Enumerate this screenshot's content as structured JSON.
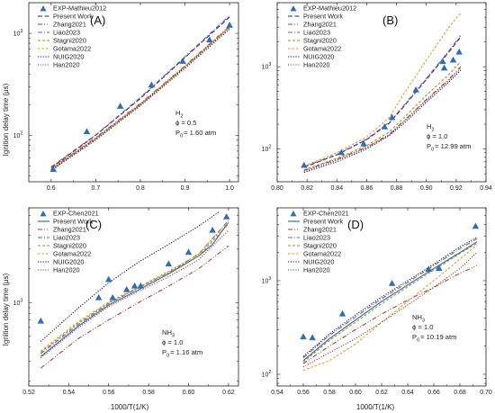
{
  "figure": {
    "ylabel": "Ignition delay time (μs)",
    "xlabel": "1000/T(1/K)"
  },
  "style": {
    "exp": "#2f6db5",
    "Present Work": "#1f2a6b",
    "Zhang2021": "#b0392b",
    "Liao2023": "#7a55b8",
    "Stagni2020": "#8a9a2a",
    "Gotama2022": "#e8931a",
    "NUIG2020": "#0a0a8a",
    "Han2020": "#8b1a1a",
    "Present Work C": "#2c5f8f",
    "Zhang2021 C": "#b0392b",
    "NUIG2020 C": "#111111"
  },
  "chart_data": [
    {
      "panel": "(A)",
      "type": "line",
      "log_y": true,
      "xlim": [
        0.55,
        1.02
      ],
      "ylim": [
        35,
        2000
      ],
      "xticks": [
        0.6,
        0.7,
        0.8,
        0.9,
        1.0
      ],
      "xtick_labels": [
        "0.6",
        "0.7",
        "0.8",
        "0.9",
        "1.0"
      ],
      "yticks": [
        100,
        1000
      ],
      "legend": [
        "EXP-Mathieu2012",
        "Present Work",
        "Zhang2021",
        "Liao2023",
        "Stagni2020",
        "Gotama2022",
        "NUIG2020",
        "Han2020"
      ],
      "annotation": {
        "species": "H",
        "sub": "2",
        "phi": "ϕ = 0.5",
        "p": "P",
        "psub": "0",
        "pval": "= 1.60 atm"
      },
      "series": [
        {
          "name": "EXP-Mathieu2012",
          "kind": "exp",
          "x": [
            0.605,
            0.68,
            0.755,
            0.825,
            0.895,
            0.955,
            1.0
          ],
          "y": [
            46,
            108,
            192,
            310,
            530,
            860,
            1200
          ]
        },
        {
          "name": "Present Work",
          "x": [
            0.6,
            0.7,
            0.8,
            0.9,
            1.0
          ],
          "y": [
            48,
            100,
            230,
            580,
            1450
          ]
        },
        {
          "name": "Zhang2021",
          "x": [
            0.6,
            0.7,
            0.8,
            0.9,
            1.0
          ],
          "y": [
            47,
            95,
            205,
            480,
            1180
          ]
        },
        {
          "name": "Liao2023",
          "x": [
            0.6,
            0.7,
            0.8,
            0.9,
            1.0
          ],
          "y": [
            49,
            101,
            235,
            590,
            1500
          ]
        },
        {
          "name": "Stagni2020",
          "x": [
            0.6,
            0.7,
            0.8,
            0.9,
            1.0
          ],
          "y": [
            46,
            92,
            200,
            470,
            1150
          ]
        },
        {
          "name": "Gotama2022",
          "x": [
            0.6,
            0.7,
            0.8,
            0.9,
            1.0
          ],
          "y": [
            47,
            94,
            202,
            475,
            1170
          ]
        },
        {
          "name": "NUIG2020",
          "x": [
            0.6,
            0.7,
            0.8,
            0.9,
            1.0
          ],
          "y": [
            45,
            90,
            195,
            455,
            1100
          ]
        },
        {
          "name": "Han2020",
          "x": [
            0.6,
            0.7,
            0.8,
            0.9,
            1.0
          ],
          "y": [
            46,
            93,
            200,
            468,
            1140
          ]
        }
      ]
    },
    {
      "panel": "(B)",
      "type": "line",
      "log_y": true,
      "xlim": [
        0.8,
        0.94
      ],
      "ylim": [
        40,
        6000
      ],
      "xticks": [
        0.8,
        0.82,
        0.84,
        0.86,
        0.88,
        0.9,
        0.92,
        0.94
      ],
      "xtick_labels": [
        "0.80",
        "0.82",
        "0.84",
        "0.86",
        "0.88",
        "0.90",
        "0.92",
        "0.94"
      ],
      "yticks": [
        100,
        1000
      ],
      "legend": [
        "EXP-Mathieu2012",
        "Present Work",
        "Zhang2021",
        "Liao2023",
        "Stagni2020",
        "Gotama2022",
        "NUIG2020",
        "Han2020"
      ],
      "annotation": {
        "species": "H",
        "sub": "2",
        "phi": "ϕ = 1.0",
        "p": "P",
        "psub": "0",
        "pval": "= 12.99 atm"
      },
      "series": [
        {
          "name": "EXP-Mathieu2012",
          "kind": "exp",
          "x": [
            0.818,
            0.843,
            0.858,
            0.872,
            0.877,
            0.893,
            0.911,
            0.912,
            0.918,
            0.922
          ],
          "y": [
            63,
            90,
            115,
            185,
            240,
            520,
            1150,
            960,
            1200,
            1500
          ]
        },
        {
          "name": "Present Work",
          "x": [
            0.818,
            0.84,
            0.86,
            0.875,
            0.885,
            0.9,
            0.915,
            0.923
          ],
          "y": [
            60,
            85,
            130,
            205,
            330,
            700,
            1500,
            2300
          ]
        },
        {
          "name": "Zhang2021",
          "x": [
            0.818,
            0.84,
            0.86,
            0.875,
            0.885,
            0.9,
            0.915,
            0.923
          ],
          "y": [
            55,
            75,
            105,
            150,
            220,
            400,
            700,
            1000
          ]
        },
        {
          "name": "Liao2023",
          "x": [
            0.818,
            0.84,
            0.86,
            0.875,
            0.885,
            0.9,
            0.915,
            0.923
          ],
          "y": [
            61,
            86,
            132,
            210,
            340,
            720,
            1550,
            2400
          ]
        },
        {
          "name": "Stagni2020",
          "x": [
            0.818,
            0.84,
            0.86,
            0.875,
            0.885,
            0.9,
            0.915,
            0.923
          ],
          "y": [
            56,
            77,
            110,
            160,
            240,
            450,
            800,
            1150
          ]
        },
        {
          "name": "Gotama2022",
          "x": [
            0.818,
            0.84,
            0.86,
            0.875,
            0.885,
            0.9,
            0.915,
            0.923
          ],
          "y": [
            62,
            90,
            140,
            240,
            470,
            1200,
            3000,
            4500
          ]
        },
        {
          "name": "NUIG2020",
          "x": [
            0.818,
            0.84,
            0.86,
            0.875,
            0.885,
            0.9,
            0.915,
            0.923
          ],
          "y": [
            52,
            70,
            100,
            145,
            205,
            370,
            650,
            900
          ]
        },
        {
          "name": "Han2020",
          "x": [
            0.818,
            0.84,
            0.86,
            0.875,
            0.885,
            0.9,
            0.915,
            0.923
          ],
          "y": [
            54,
            73,
            104,
            148,
            215,
            390,
            680,
            950
          ]
        }
      ]
    },
    {
      "panel": "(C)",
      "type": "line",
      "log_y": true,
      "xlim": [
        0.52,
        0.625
      ],
      "ylim": [
        180,
        7000
      ],
      "xticks": [
        0.52,
        0.54,
        0.56,
        0.58,
        0.6,
        0.62
      ],
      "xtick_labels": [
        "0.52",
        "0.54",
        "0.56",
        "0.58",
        "0.60",
        "0.62"
      ],
      "yticks": [
        1000
      ],
      "legend": [
        "EXP-Chen2021",
        "Present Work",
        "Zhang2021",
        "Liao2023",
        "Stagni2020",
        "Gotama2022",
        "NUIG2020",
        "Han2020"
      ],
      "annotation": {
        "species": "NH",
        "sub": "3",
        "phi": "ϕ = 1.0",
        "p": "P",
        "psub": "0",
        "pval": "= 1.16 atm"
      },
      "series": [
        {
          "name": "EXP-Chen2021",
          "kind": "exp",
          "x": [
            0.526,
            0.555,
            0.56,
            0.562,
            0.569,
            0.573,
            0.576,
            0.59,
            0.6,
            0.612,
            0.619
          ],
          "y": [
            680,
            1100,
            1600,
            1100,
            1300,
            1400,
            1400,
            2200,
            2800,
            4400,
            5800
          ]
        },
        {
          "name": "Present Work",
          "key": "Present Work C",
          "x": [
            0.526,
            0.545,
            0.56,
            0.575,
            0.59,
            0.605,
            0.612,
            0.62
          ],
          "y": [
            330,
            620,
            950,
            1300,
            1800,
            2600,
            3300,
            5200
          ]
        },
        {
          "name": "Zhang2021",
          "key": "Zhang2021 C",
          "x": [
            0.526,
            0.545,
            0.56,
            0.575,
            0.59,
            0.605,
            0.62
          ],
          "y": [
            260,
            480,
            700,
            1000,
            1400,
            2000,
            3200
          ]
        },
        {
          "name": "Liao2023",
          "x": [
            0.526,
            0.545,
            0.56,
            0.575,
            0.59,
            0.605,
            0.62
          ],
          "y": [
            350,
            640,
            980,
            1350,
            1850,
            2700,
            5400
          ]
        },
        {
          "name": "Stagni2020",
          "x": [
            0.526,
            0.545,
            0.56,
            0.575,
            0.59,
            0.605,
            0.62
          ],
          "y": [
            360,
            660,
            990,
            1360,
            1850,
            2600,
            5000
          ]
        },
        {
          "name": "Gotama2022",
          "x": [
            0.526,
            0.545,
            0.56,
            0.575,
            0.59,
            0.605,
            0.62
          ],
          "y": [
            370,
            680,
            1010,
            1380,
            1900,
            2700,
            5200
          ]
        },
        {
          "name": "NUIG2020",
          "key": "NUIG2020 C",
          "x": [
            0.526,
            0.545,
            0.56,
            0.575,
            0.59,
            0.605,
            0.615
          ],
          "y": [
            450,
            900,
            1500,
            2300,
            3300,
            4800,
            6400
          ]
        },
        {
          "name": "Han2020",
          "x": [
            0.526,
            0.545,
            0.56,
            0.575,
            0.59,
            0.605,
            0.62
          ],
          "y": [
            320,
            600,
            920,
            1260,
            1700,
            2400,
            4400
          ]
        }
      ]
    },
    {
      "panel": "(D)",
      "type": "line",
      "log_y": true,
      "xlim": [
        0.54,
        0.7
      ],
      "ylim": [
        75,
        6000
      ],
      "xticks": [
        0.54,
        0.56,
        0.58,
        0.6,
        0.62,
        0.64,
        0.66,
        0.68,
        0.7
      ],
      "xtick_labels": [
        "0.54",
        "0.56",
        "0.58",
        "0.60",
        "0.62",
        "0.64",
        "0.66",
        "0.68",
        "0.70"
      ],
      "yticks": [
        100,
        1000
      ],
      "legend": [
        "EXP-Chen2021",
        "Present Work",
        "Zhang2021",
        "Liao2023",
        "Stagni2020",
        "Gotama2022",
        "NUIG2020",
        "Han2020"
      ],
      "annotation": {
        "species": "NH",
        "sub": "3",
        "phi": "ϕ = 1.0",
        "p": "P",
        "psub": "0",
        "pval": "= 10.19 atm"
      },
      "series": [
        {
          "name": "EXP-Chen2021",
          "kind": "exp",
          "x": [
            0.56,
            0.567,
            0.59,
            0.628,
            0.656,
            0.664,
            0.692
          ],
          "y": [
            250,
            245,
            440,
            930,
            1320,
            1350,
            3800
          ]
        },
        {
          "name": "Present Work",
          "key": "Present Work C",
          "x": [
            0.56,
            0.58,
            0.6,
            0.62,
            0.64,
            0.66,
            0.68,
            0.693
          ],
          "y": [
            140,
            240,
            380,
            600,
            900,
            1350,
            2000,
            2600
          ]
        },
        {
          "name": "Zhang2021",
          "key": "Zhang2021 C",
          "x": [
            0.56,
            0.58,
            0.6,
            0.62,
            0.64,
            0.66,
            0.68,
            0.693
          ],
          "y": [
            130,
            200,
            300,
            440,
            620,
            850,
            1200,
            1450
          ]
        },
        {
          "name": "Liao2023",
          "x": [
            0.56,
            0.58,
            0.6,
            0.62,
            0.64,
            0.66,
            0.68,
            0.693
          ],
          "y": [
            150,
            260,
            410,
            640,
            960,
            1450,
            2200,
            2800
          ]
        },
        {
          "name": "Stagni2020",
          "x": [
            0.56,
            0.58,
            0.6,
            0.62,
            0.64,
            0.66,
            0.68,
            0.693
          ],
          "y": [
            135,
            230,
            360,
            570,
            860,
            1300,
            1950,
            2500
          ]
        },
        {
          "name": "Gotama2022",
          "x": [
            0.56,
            0.58,
            0.6,
            0.62,
            0.64,
            0.66,
            0.68,
            0.693
          ],
          "y": [
            110,
            140,
            210,
            360,
            600,
            1000,
            1700,
            2400
          ]
        },
        {
          "name": "NUIG2020",
          "key": "NUIG2020 C",
          "x": [
            0.56,
            0.58,
            0.6,
            0.62,
            0.64,
            0.66,
            0.68,
            0.693
          ],
          "y": [
            155,
            270,
            430,
            670,
            1000,
            1500,
            2300,
            2900
          ]
        },
        {
          "name": "Han2020",
          "x": [
            0.56,
            0.58,
            0.6,
            0.62,
            0.64,
            0.66,
            0.68,
            0.693
          ],
          "y": [
            120,
            170,
            240,
            360,
            550,
            850,
            1350,
            2000
          ]
        }
      ]
    }
  ]
}
